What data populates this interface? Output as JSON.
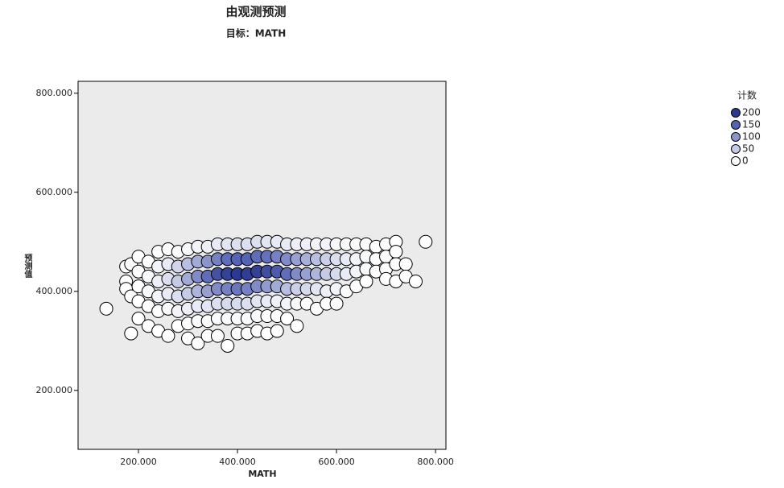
{
  "chart_data": {
    "type": "scatter",
    "title": "由观测预测",
    "subtitle": "目标：MATH",
    "x_label": "MATH",
    "y_label": "预测值",
    "xlim": [
      78,
      821
    ],
    "ylim": [
      81,
      824
    ],
    "xticks": [
      {
        "value": 200,
        "label": "200.000"
      },
      {
        "value": 400,
        "label": "400.000"
      },
      {
        "value": 600,
        "label": "600.000"
      },
      {
        "value": 800,
        "label": "800.000"
      }
    ],
    "yticks": [
      {
        "value": 200,
        "label": "200.000"
      },
      {
        "value": 400,
        "label": "400.000"
      },
      {
        "value": 600,
        "label": "600.000"
      },
      {
        "value": 800,
        "label": "800.000"
      }
    ],
    "legend": {
      "title": "计数",
      "values": [
        200,
        150,
        100,
        50,
        0
      ],
      "colors": [
        "#2b3990",
        "#5563b3",
        "#8b95cc",
        "#c5cae5",
        "#ffffff"
      ]
    },
    "x": [
      135,
      175,
      175,
      175,
      185,
      185,
      185,
      200,
      200,
      200,
      200,
      200,
      220,
      220,
      220,
      220,
      220,
      240,
      240,
      240,
      240,
      240,
      240,
      260,
      260,
      260,
      260,
      260,
      260,
      280,
      280,
      280,
      280,
      280,
      280,
      300,
      300,
      300,
      300,
      300,
      300,
      300,
      320,
      320,
      320,
      320,
      320,
      320,
      320,
      340,
      340,
      340,
      340,
      340,
      340,
      340,
      360,
      360,
      360,
      360,
      360,
      360,
      360,
      380,
      380,
      380,
      380,
      380,
      380,
      380,
      400,
      400,
      400,
      400,
      400,
      400,
      400,
      420,
      420,
      420,
      420,
      420,
      420,
      420,
      440,
      440,
      440,
      440,
      440,
      440,
      440,
      460,
      460,
      460,
      460,
      460,
      460,
      460,
      480,
      480,
      480,
      480,
      480,
      480,
      480,
      500,
      500,
      500,
      500,
      500,
      500,
      520,
      520,
      520,
      520,
      520,
      520,
      540,
      540,
      540,
      540,
      540,
      560,
      560,
      560,
      560,
      560,
      580,
      580,
      580,
      580,
      580,
      600,
      600,
      600,
      600,
      600,
      620,
      620,
      620,
      620,
      640,
      640,
      640,
      640,
      660,
      660,
      660,
      660,
      680,
      680,
      680,
      700,
      700,
      700,
      700,
      720,
      720,
      720,
      720,
      740,
      740,
      760,
      780
    ],
    "values": [
      365,
      450,
      420,
      405,
      455,
      390,
      315,
      470,
      440,
      410,
      380,
      345,
      460,
      430,
      400,
      370,
      330,
      480,
      450,
      420,
      390,
      360,
      320,
      485,
      455,
      425,
      395,
      365,
      310,
      480,
      450,
      420,
      390,
      360,
      330,
      485,
      455,
      425,
      395,
      365,
      335,
      305,
      490,
      460,
      430,
      400,
      370,
      340,
      295,
      490,
      460,
      430,
      400,
      370,
      340,
      310,
      495,
      465,
      435,
      405,
      375,
      345,
      310,
      495,
      465,
      435,
      405,
      375,
      345,
      290,
      495,
      465,
      435,
      405,
      375,
      345,
      315,
      495,
      465,
      435,
      405,
      375,
      345,
      315,
      500,
      470,
      440,
      410,
      380,
      350,
      320,
      500,
      470,
      440,
      410,
      380,
      350,
      315,
      500,
      470,
      440,
      410,
      380,
      350,
      320,
      495,
      465,
      435,
      405,
      375,
      345,
      495,
      465,
      435,
      405,
      375,
      330,
      495,
      465,
      435,
      405,
      375,
      495,
      465,
      435,
      405,
      365,
      495,
      465,
      435,
      400,
      375,
      495,
      465,
      435,
      405,
      375,
      495,
      465,
      435,
      400,
      495,
      465,
      440,
      410,
      495,
      470,
      445,
      420,
      490,
      465,
      440,
      495,
      470,
      445,
      425,
      500,
      480,
      455,
      420,
      455,
      430,
      420,
      500
    ],
    "counts": [
      0,
      0,
      0,
      0,
      0,
      0,
      0,
      0,
      2,
      2,
      0,
      0,
      2,
      5,
      5,
      2,
      0,
      0,
      10,
      15,
      10,
      2,
      0,
      0,
      20,
      30,
      20,
      5,
      0,
      5,
      40,
      50,
      30,
      10,
      0,
      5,
      60,
      80,
      50,
      15,
      2,
      0,
      10,
      80,
      110,
      70,
      20,
      5,
      0,
      15,
      100,
      140,
      90,
      25,
      5,
      0,
      20,
      120,
      170,
      110,
      30,
      5,
      0,
      25,
      140,
      190,
      120,
      35,
      5,
      0,
      30,
      150,
      200,
      130,
      35,
      5,
      0,
      30,
      150,
      195,
      120,
      30,
      5,
      0,
      30,
      140,
      190,
      110,
      25,
      5,
      0,
      25,
      135,
      175,
      95,
      20,
      2,
      0,
      20,
      120,
      160,
      80,
      15,
      2,
      0,
      20,
      110,
      140,
      60,
      10,
      0,
      15,
      90,
      110,
      45,
      5,
      0,
      15,
      75,
      90,
      35,
      2,
      10,
      60,
      70,
      25,
      0,
      10,
      45,
      50,
      15,
      0,
      5,
      30,
      35,
      10,
      0,
      5,
      20,
      20,
      5,
      2,
      10,
      10,
      2,
      2,
      5,
      5,
      0,
      0,
      2,
      2,
      0,
      0,
      0,
      0,
      0,
      0,
      0,
      0,
      0,
      0,
      0,
      0
    ]
  }
}
